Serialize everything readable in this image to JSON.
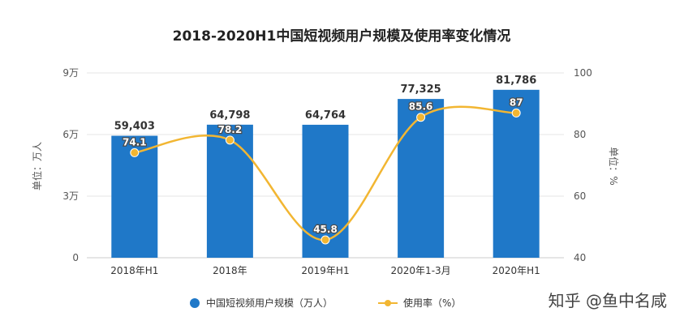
{
  "chart_data": {
    "type": "bar",
    "title": "2018-2020H1中国短视频用户规模及使用率变化情况",
    "categories": [
      "2018年H1",
      "2018年",
      "2019年H1",
      "2020年1-3月",
      "2020年H1"
    ],
    "series": [
      {
        "name": "中国短视频用户规模（万人）",
        "type": "bar",
        "axis": "left",
        "values": [
          59403,
          64798,
          64764,
          77325,
          81786
        ],
        "labels": [
          "59,403",
          "64,798",
          "64,764",
          "77,325",
          "81,786"
        ]
      },
      {
        "name": "使用率（%）",
        "type": "line",
        "axis": "right",
        "values": [
          74.1,
          78.2,
          45.8,
          85.6,
          87
        ],
        "labels": [
          "74.1",
          "78.2",
          "45.8",
          "85.6",
          "87"
        ]
      }
    ],
    "y_left": {
      "label": "单位：万人",
      "ylim": [
        0,
        90000
      ],
      "ticks": [
        0,
        30000,
        60000,
        90000
      ],
      "tick_labels": [
        "0",
        "3万",
        "6万",
        "9万"
      ]
    },
    "y_right": {
      "label": "单位：%",
      "ylim": [
        40,
        100
      ],
      "ticks": [
        40,
        60,
        80,
        100
      ],
      "tick_labels": [
        "40",
        "60",
        "80",
        "100"
      ]
    },
    "grid": true,
    "legend_position": "bottom",
    "colors": {
      "bar": "#1f78c8",
      "line": "#f2b632",
      "grid": "#e6e6e6"
    }
  },
  "watermark": "知乎 @鱼中名咸"
}
